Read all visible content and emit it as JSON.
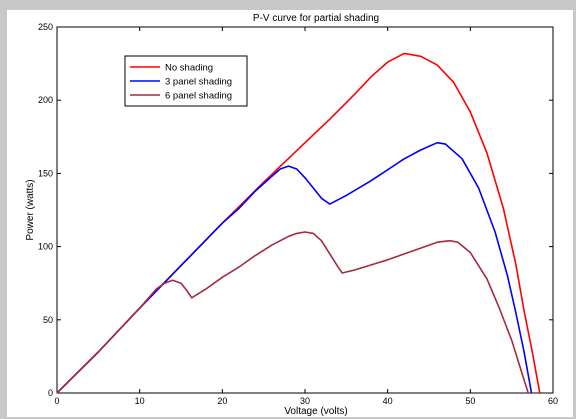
{
  "chart_data": {
    "type": "line",
    "title": "P-V curve for partial shading",
    "xlabel": "Voltage (volts)",
    "ylabel": "Power (watts)",
    "xlim": [
      0,
      60
    ],
    "ylim": [
      0,
      250
    ],
    "xticks": [
      0,
      10,
      20,
      30,
      40,
      50,
      60
    ],
    "yticks": [
      0,
      50,
      100,
      150,
      200,
      250
    ],
    "grid": false,
    "legend_position": "top-left",
    "series": [
      {
        "name": "No shading",
        "color": "#ff0000",
        "points": [
          [
            0,
            0
          ],
          [
            5,
            28
          ],
          [
            10,
            58
          ],
          [
            15,
            87
          ],
          [
            20,
            116
          ],
          [
            25,
            144
          ],
          [
            30,
            171
          ],
          [
            33,
            187
          ],
          [
            36,
            204
          ],
          [
            38,
            216
          ],
          [
            40,
            226
          ],
          [
            42,
            232
          ],
          [
            44,
            230
          ],
          [
            46,
            224
          ],
          [
            48,
            212
          ],
          [
            50,
            192
          ],
          [
            52,
            164
          ],
          [
            54,
            126
          ],
          [
            55.5,
            88
          ],
          [
            56.5,
            56
          ],
          [
            57.5,
            28
          ],
          [
            58.4,
            0
          ]
        ]
      },
      {
        "name": "3 panel shading",
        "color": "#0000ff",
        "points": [
          [
            0,
            0
          ],
          [
            5,
            28
          ],
          [
            10,
            58
          ],
          [
            15,
            87
          ],
          [
            20,
            116
          ],
          [
            22,
            126
          ],
          [
            24,
            138
          ],
          [
            26,
            148
          ],
          [
            27,
            153
          ],
          [
            28,
            155
          ],
          [
            29,
            153
          ],
          [
            30,
            147
          ],
          [
            31,
            140
          ],
          [
            32,
            133
          ],
          [
            33,
            129
          ],
          [
            35,
            135
          ],
          [
            38,
            145
          ],
          [
            42,
            160
          ],
          [
            44,
            166
          ],
          [
            46,
            171
          ],
          [
            47,
            170
          ],
          [
            49,
            160
          ],
          [
            51,
            140
          ],
          [
            53,
            110
          ],
          [
            54.5,
            80
          ],
          [
            55.5,
            55
          ],
          [
            56.5,
            28
          ],
          [
            57.4,
            0
          ]
        ]
      },
      {
        "name": "6 panel shading",
        "color": "#a52a40",
        "points": [
          [
            0,
            0
          ],
          [
            5,
            28
          ],
          [
            10,
            58
          ],
          [
            12,
            71
          ],
          [
            13,
            75
          ],
          [
            14,
            77
          ],
          [
            15,
            75
          ],
          [
            15.7,
            70
          ],
          [
            16.3,
            65
          ],
          [
            18,
            71
          ],
          [
            20,
            79
          ],
          [
            22,
            86
          ],
          [
            24,
            94
          ],
          [
            26,
            101
          ],
          [
            28,
            107
          ],
          [
            29,
            109
          ],
          [
            30,
            110
          ],
          [
            31,
            109
          ],
          [
            32,
            104
          ],
          [
            33,
            95
          ],
          [
            34,
            86
          ],
          [
            34.5,
            82
          ],
          [
            36,
            84
          ],
          [
            40,
            91
          ],
          [
            44,
            99
          ],
          [
            46,
            103
          ],
          [
            47.5,
            104
          ],
          [
            48.5,
            103
          ],
          [
            50,
            96
          ],
          [
            52,
            78
          ],
          [
            53.5,
            58
          ],
          [
            55,
            36
          ],
          [
            56,
            18
          ],
          [
            57,
            0
          ]
        ]
      }
    ]
  }
}
